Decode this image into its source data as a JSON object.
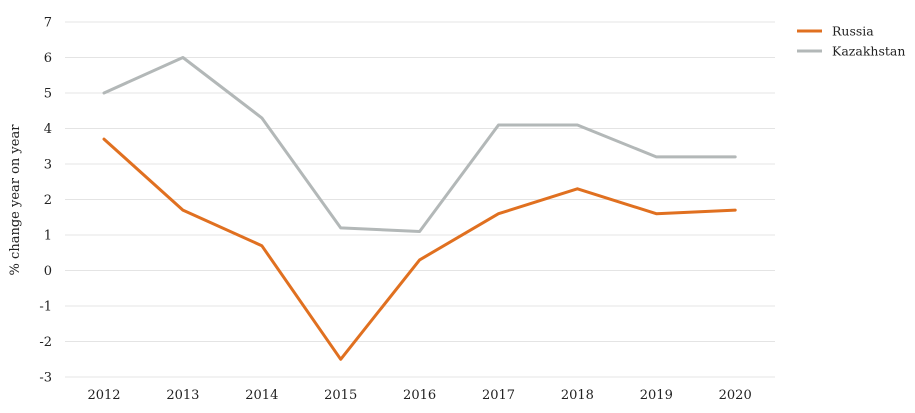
{
  "chart_data": {
    "type": "line",
    "title": "",
    "xlabel": "",
    "ylabel": "% change year on year",
    "ylim": [
      -3,
      7
    ],
    "yticks": [
      7,
      6,
      5,
      4,
      3,
      2,
      1,
      0,
      -1,
      -2,
      -3
    ],
    "ytick_labels": [
      "7",
      "6",
      "5",
      "4",
      "3",
      "2",
      "1",
      "0",
      "-1",
      "-2",
      "-3"
    ],
    "categories": [
      "2012",
      "2013",
      "2014",
      "2015",
      "2016",
      "2017",
      "2018",
      "2019",
      "2020"
    ],
    "grid": true,
    "legend_position": "top-right",
    "series": [
      {
        "name": "Russia",
        "color": "#e07020",
        "values": [
          3.7,
          1.7,
          0.7,
          -2.5,
          0.3,
          1.6,
          2.3,
          1.6,
          1.7
        ]
      },
      {
        "name": "Kazakhstan",
        "color": "#b3b8b8",
        "values": [
          5.0,
          6.0,
          4.3,
          1.2,
          1.1,
          4.1,
          4.1,
          3.2,
          3.2
        ]
      }
    ]
  }
}
